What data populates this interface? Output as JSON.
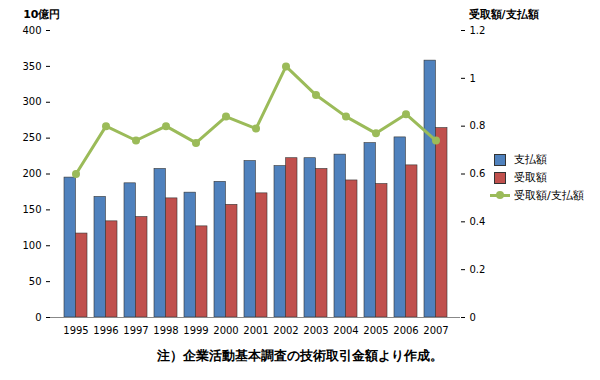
{
  "chart_data": {
    "type": "bar",
    "categories": [
      "1995",
      "1996",
      "1997",
      "1998",
      "1999",
      "2000",
      "2001",
      "2002",
      "2003",
      "2004",
      "2005",
      "2006",
      "2007"
    ],
    "y_label": "10億円",
    "y2_label": "受取額/支払額",
    "caption": "注）企業活動基本調査の技術取引金額より作成。",
    "series": [
      {
        "name": "支払額",
        "color": "#4f81bd",
        "type": "bar",
        "values": [
          195,
          168,
          187,
          207,
          174,
          189,
          218,
          211,
          222,
          227,
          243,
          251,
          358
        ]
      },
      {
        "name": "受取額",
        "color": "#c0504d",
        "type": "bar",
        "values": [
          117,
          134,
          140,
          166,
          127,
          157,
          173,
          222,
          207,
          191,
          186,
          212,
          264
        ]
      },
      {
        "name": "受取額/支払額",
        "color": "#9bbb59",
        "type": "line",
        "axis": "y2",
        "marker": "circle",
        "values": [
          0.6,
          0.8,
          0.74,
          0.8,
          0.73,
          0.84,
          0.79,
          1.05,
          0.93,
          0.84,
          0.77,
          0.85,
          0.74
        ]
      }
    ],
    "ylim": [
      0,
      400
    ],
    "yticks": [
      0,
      50,
      100,
      150,
      200,
      250,
      300,
      350,
      400
    ],
    "y2lim": [
      0,
      1.2
    ],
    "y2ticks": [
      0,
      0.2,
      0.4,
      0.6,
      0.8,
      1,
      1.2
    ],
    "legend": "right",
    "grid": false
  }
}
